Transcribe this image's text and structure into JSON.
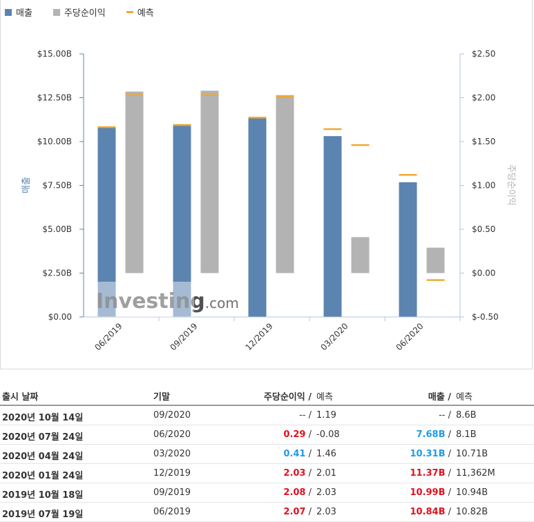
{
  "legend": [
    {
      "label": "매출",
      "color": "#5b84b1"
    },
    {
      "label": "주당순이익",
      "color": "#b3b3b3"
    },
    {
      "label": "예측",
      "color": "#f0a830"
    }
  ],
  "chart_data": {
    "type": "bar",
    "categories": [
      "06/2019",
      "09/2019",
      "12/2019",
      "03/2020",
      "06/2020"
    ],
    "series": [
      {
        "name": "매출",
        "axis": "left",
        "values": [
          10.84,
          10.99,
          11.37,
          10.31,
          7.68
        ],
        "forecast": [
          10.82,
          10.94,
          11.362,
          10.71,
          8.1
        ],
        "color": "#5b84b1"
      },
      {
        "name": "주당순이익",
        "axis": "right",
        "values": [
          2.07,
          2.08,
          2.03,
          0.41,
          0.29
        ],
        "forecast": [
          2.03,
          2.03,
          2.01,
          1.46,
          -0.08
        ],
        "color": "#b3b3b3"
      }
    ],
    "forecast_color": "#f0a830",
    "left_axis": {
      "label": "매출",
      "ylim": [
        0,
        15
      ],
      "ticks": [
        "$0.00",
        "$2.50B",
        "$5.00B",
        "$7.50B",
        "$10.00B",
        "$12.50B",
        "$15.00B"
      ]
    },
    "right_axis": {
      "label": "주당순이익",
      "ylim": [
        -0.5,
        2.5
      ],
      "ticks": [
        "$-0.50",
        "$0.00",
        "$0.50",
        "$1.00",
        "$1.50",
        "$2.00",
        "$2.50"
      ]
    },
    "watermark": "Investing.com",
    "legend_position": "top-left",
    "grid": false
  },
  "table": {
    "headers": {
      "date": "출시 날짜",
      "period": "기말",
      "eps": "주당순이익",
      "eps_forecast": "예측",
      "revenue": "매출",
      "revenue_forecast": "예측"
    },
    "rows": [
      {
        "date": "2020년 10월 14일",
        "period": "09/2020",
        "eps": "--",
        "eps_class": "",
        "eps_forecast": "1.19",
        "revenue": "--",
        "revenue_class": "",
        "revenue_forecast": "8.6B"
      },
      {
        "date": "2020년 07월 24일",
        "period": "06/2020",
        "eps": "0.29",
        "eps_class": "pos",
        "eps_forecast": "-0.08",
        "revenue": "7.68B",
        "revenue_class": "neg",
        "revenue_forecast": "8.1B"
      },
      {
        "date": "2020년 04월 24일",
        "period": "03/2020",
        "eps": "0.41",
        "eps_class": "neg",
        "eps_forecast": "1.46",
        "revenue": "10.31B",
        "revenue_class": "neg",
        "revenue_forecast": "10.71B"
      },
      {
        "date": "2020년 01월 24일",
        "period": "12/2019",
        "eps": "2.03",
        "eps_class": "pos",
        "eps_forecast": "2.01",
        "revenue": "11.37B",
        "revenue_class": "pos",
        "revenue_forecast": "11,362M"
      },
      {
        "date": "2019년 10월 18일",
        "period": "09/2019",
        "eps": "2.08",
        "eps_class": "pos",
        "eps_forecast": "2.03",
        "revenue": "10.99B",
        "revenue_class": "pos",
        "revenue_forecast": "10.94B"
      },
      {
        "date": "2019년 07월 19일",
        "period": "06/2019",
        "eps": "2.07",
        "eps_class": "pos",
        "eps_forecast": "2.03",
        "revenue": "10.84B",
        "revenue_class": "pos",
        "revenue_forecast": "10.82B"
      }
    ]
  }
}
